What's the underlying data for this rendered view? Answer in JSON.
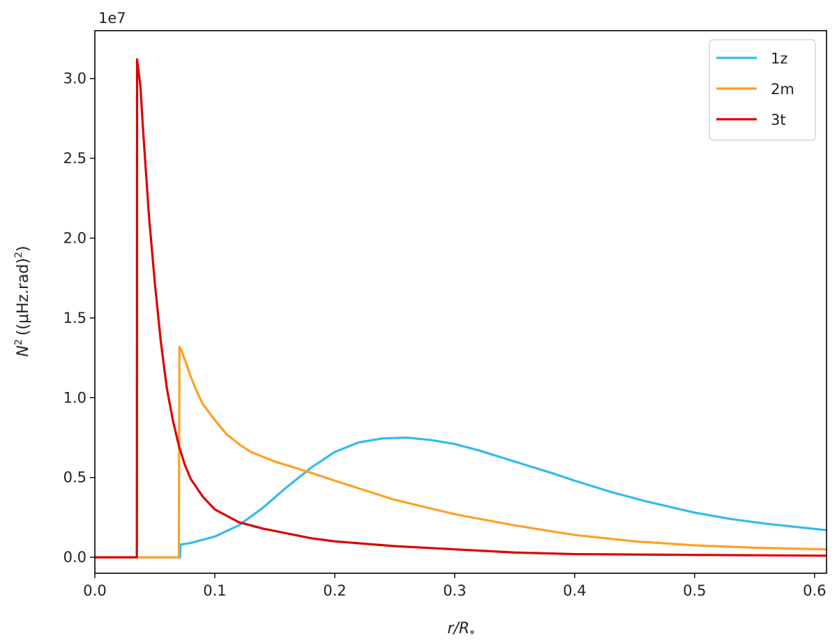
{
  "chart_data": {
    "type": "line",
    "title": "",
    "xlabel": "r/R",
    "xlabel_sub": "*",
    "ylabel_N": "N",
    "ylabel_exp": "2",
    "ylabel_unit": "((μHz.rad)",
    "ylabel_unit_exp": "2",
    "ylabel_close": ")",
    "y_multiplier": "1e7",
    "xlim": [
      0.0,
      0.61
    ],
    "ylim": [
      -0.1,
      3.3
    ],
    "x_ticks": [
      {
        "value": 0.0,
        "label": "0.0"
      },
      {
        "value": 0.1,
        "label": "0.1"
      },
      {
        "value": 0.2,
        "label": "0.2"
      },
      {
        "value": 0.3,
        "label": "0.3"
      },
      {
        "value": 0.4,
        "label": "0.4"
      },
      {
        "value": 0.5,
        "label": "0.5"
      },
      {
        "value": 0.6,
        "label": "0.6"
      }
    ],
    "y_ticks": [
      {
        "value": 0.0,
        "label": "0.0"
      },
      {
        "value": 0.5,
        "label": "0.5"
      },
      {
        "value": 1.0,
        "label": "1.0"
      },
      {
        "value": 1.5,
        "label": "1.5"
      },
      {
        "value": 2.0,
        "label": "2.0"
      },
      {
        "value": 2.5,
        "label": "2.5"
      },
      {
        "value": 3.0,
        "label": "3.0"
      }
    ],
    "grid": false,
    "legend_position": "top-right",
    "series": [
      {
        "name": "1z",
        "color": "#33BBEE",
        "x": [
          0.0,
          0.071,
          0.0715,
          0.08,
          0.1,
          0.12,
          0.14,
          0.16,
          0.18,
          0.2,
          0.22,
          0.24,
          0.26,
          0.28,
          0.3,
          0.32,
          0.35,
          0.38,
          0.4,
          0.43,
          0.46,
          0.5,
          0.53,
          0.56,
          0.61
        ],
        "y": [
          0.0,
          0.0,
          0.08,
          0.09,
          0.13,
          0.2,
          0.31,
          0.44,
          0.56,
          0.66,
          0.72,
          0.745,
          0.75,
          0.735,
          0.71,
          0.67,
          0.6,
          0.53,
          0.48,
          0.41,
          0.35,
          0.28,
          0.24,
          0.21,
          0.17
        ]
      },
      {
        "name": "2m",
        "color": "#FFA024",
        "x": [
          0.0,
          0.07,
          0.0705,
          0.072,
          0.075,
          0.08,
          0.085,
          0.09,
          0.1,
          0.11,
          0.12,
          0.13,
          0.15,
          0.18,
          0.2,
          0.25,
          0.3,
          0.35,
          0.4,
          0.45,
          0.5,
          0.55,
          0.61
        ],
        "y": [
          0.0,
          0.0,
          1.32,
          1.3,
          1.24,
          1.13,
          1.04,
          0.96,
          0.86,
          0.77,
          0.71,
          0.66,
          0.6,
          0.53,
          0.48,
          0.36,
          0.27,
          0.2,
          0.14,
          0.1,
          0.075,
          0.06,
          0.05
        ]
      },
      {
        "name": "3t",
        "color": "#DD0000",
        "x": [
          0.0,
          0.035,
          0.0352,
          0.038,
          0.04,
          0.045,
          0.05,
          0.055,
          0.06,
          0.065,
          0.07,
          0.075,
          0.08,
          0.09,
          0.1,
          0.11,
          0.12,
          0.14,
          0.16,
          0.18,
          0.2,
          0.25,
          0.3,
          0.35,
          0.4,
          0.5,
          0.61
        ],
        "y": [
          0.0,
          0.0,
          3.12,
          2.95,
          2.7,
          2.15,
          1.72,
          1.35,
          1.06,
          0.86,
          0.7,
          0.58,
          0.49,
          0.38,
          0.3,
          0.26,
          0.22,
          0.18,
          0.15,
          0.12,
          0.1,
          0.07,
          0.05,
          0.03,
          0.02,
          0.015,
          0.01
        ]
      }
    ]
  }
}
